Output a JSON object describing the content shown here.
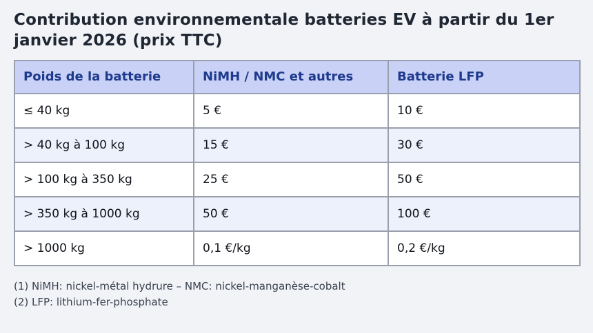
{
  "title": "Contribution environnementale batteries EV à partir du 1er janvier 2026 (prix TTC)",
  "table": {
    "columns": [
      "Poids de la batterie",
      "NiMH / NMC et autres",
      "Batterie LFP"
    ],
    "rows": [
      [
        "≤ 40 kg",
        "5 €",
        "10 €"
      ],
      [
        "> 40 kg à 100 kg",
        "15 €",
        "30 €"
      ],
      [
        "> 100 kg à 350 kg",
        "25 €",
        "50 €"
      ],
      [
        "> 350 kg à 1000 kg",
        "50 €",
        "100 €"
      ],
      [
        "> 1000 kg",
        "0,1 €/kg",
        "0,2 €/kg"
      ]
    ]
  },
  "footnotes": [
    "(1) NiMH: nickel-métal hydrure – NMC: nickel-manganèse-cobalt",
    "(2) LFP: lithium-fer-phosphate"
  ],
  "colors": {
    "page_background": "#f1f3f7",
    "header_background": "#c9d1f7",
    "header_text": "#1e3a8c",
    "row_alternate_background": "#edf1fb",
    "cell_border": "#999fad",
    "title_text": "#1f2733",
    "footnote_text": "#3a424f"
  }
}
